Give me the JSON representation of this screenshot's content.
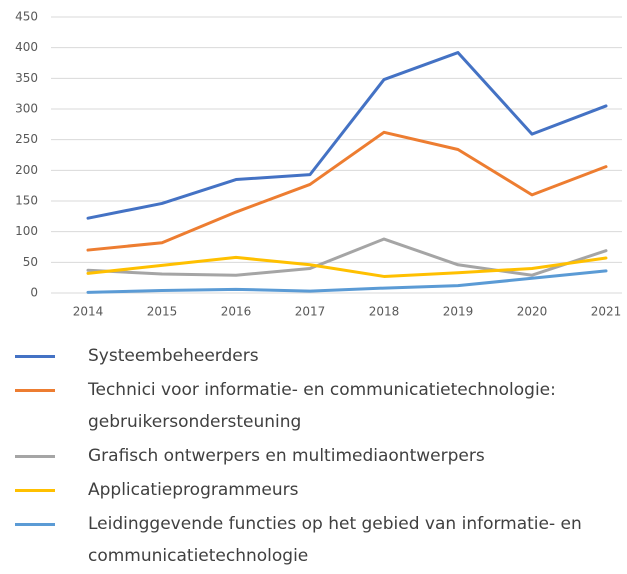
{
  "chart_data": {
    "type": "line",
    "categories": [
      "2014",
      "2015",
      "2016",
      "2017",
      "2018",
      "2019",
      "2020",
      "2021"
    ],
    "series": [
      {
        "name": "Systeembeheerders",
        "color": "#4472c4",
        "values": [
          122,
          146,
          185,
          193,
          348,
          392,
          259,
          305
        ]
      },
      {
        "name": "Technici voor informatie- en communicatietechnologie: gebruikersondersteuning",
        "color": "#ed7d31",
        "values": [
          70,
          82,
          132,
          177,
          262,
          234,
          160,
          206
        ]
      },
      {
        "name": "Grafisch ontwerpers en multimediaontwerpers",
        "color": "#a5a5a5",
        "values": [
          37,
          31,
          29,
          40,
          88,
          46,
          29,
          69
        ]
      },
      {
        "name": "Applicatieprogrammeurs",
        "color": "#ffc000",
        "values": [
          32,
          45,
          58,
          46,
          27,
          33,
          40,
          57
        ]
      },
      {
        "name": "Leidinggevende functies op het gebied van informatie- en communicatietechnologie",
        "color": "#5b9bd5",
        "values": [
          1,
          4,
          6,
          3,
          8,
          12,
          24,
          36
        ]
      }
    ],
    "ylim": [
      0,
      450
    ],
    "yticks": [
      0,
      50,
      100,
      150,
      200,
      250,
      300,
      350,
      400,
      450
    ],
    "grid": true
  }
}
